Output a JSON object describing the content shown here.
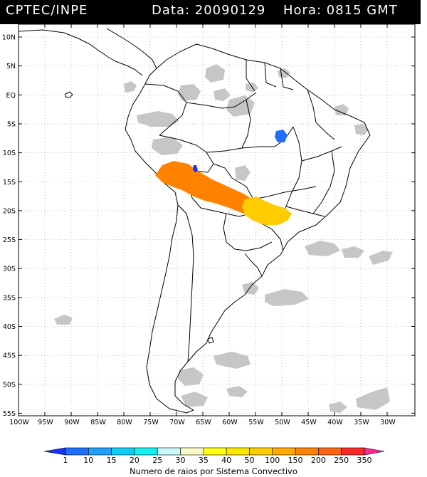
{
  "header": {
    "source": "CPTEC/INPE",
    "data_label": "Data: 20090129",
    "hora_label": "Hora: 0815 GMT"
  },
  "map": {
    "lat_labels": [
      "10N",
      "5N",
      "EQ",
      "5S",
      "10S",
      "15S",
      "20S",
      "25S",
      "30S",
      "35S",
      "40S",
      "45S",
      "50S",
      "55S"
    ],
    "lon_labels": [
      "100W",
      "95W",
      "90W",
      "85W",
      "80W",
      "75W",
      "70W",
      "65W",
      "60W",
      "55W",
      "50W",
      "45W",
      "40W",
      "35W",
      "30W"
    ],
    "grid": true,
    "colors": {
      "satellite_gray": "#c8c8c8",
      "border_line": "#000000"
    }
  },
  "colorbar": {
    "caption": "Numero de raios por Sistema Convectivo",
    "labels": [
      "1",
      "10",
      "15",
      "20",
      "25",
      "30",
      "35",
      "40",
      "50",
      "100",
      "150",
      "200",
      "250",
      "350"
    ],
    "colors": [
      "#1432ff",
      "#1e6eff",
      "#1ea0ff",
      "#10cdf5",
      "#14f0f0",
      "#c8fafa",
      "#fafac8",
      "#ffff14",
      "#ffe800",
      "#ffcc00",
      "#ffaa00",
      "#ff8200",
      "#ff6414",
      "#ff2828",
      "#ff2896"
    ]
  }
}
